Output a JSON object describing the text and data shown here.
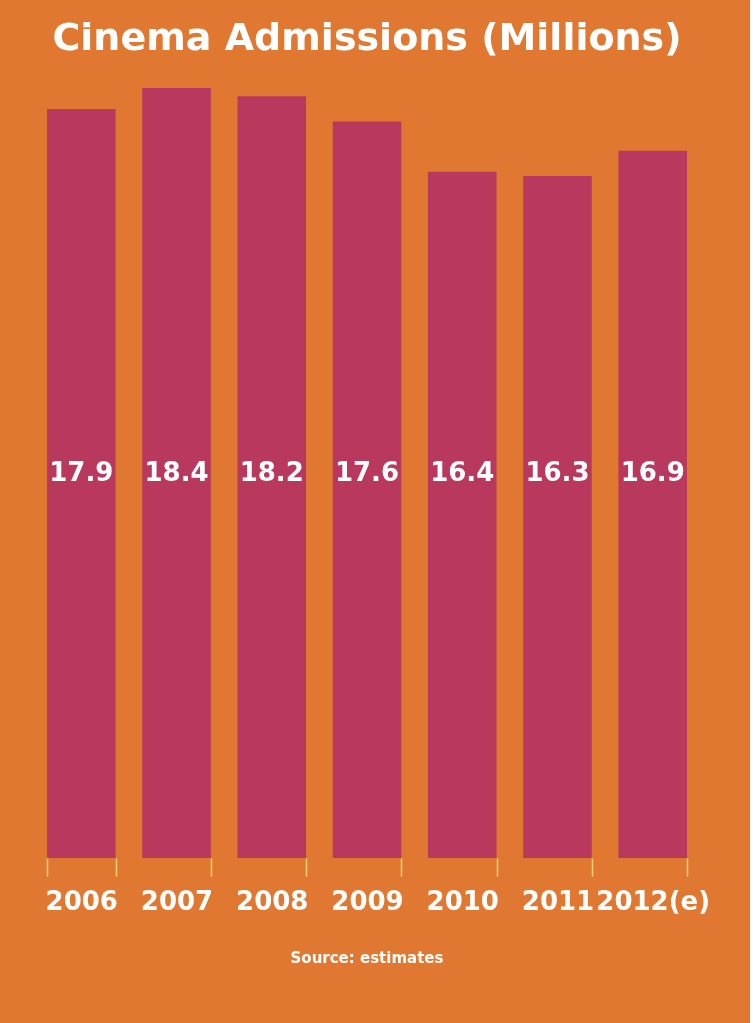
{
  "chart_data": {
    "type": "bar",
    "title": "Cinema Admissions (Millions)",
    "categories": [
      "2006",
      "2007",
      "2008",
      "2009",
      "2010",
      "2011",
      "2012(e)"
    ],
    "values": [
      17.9,
      18.4,
      18.2,
      17.6,
      16.4,
      16.3,
      16.9
    ],
    "color": "#b8395d",
    "data_labels": true,
    "annotations": [
      "Source: estimates"
    ]
  }
}
